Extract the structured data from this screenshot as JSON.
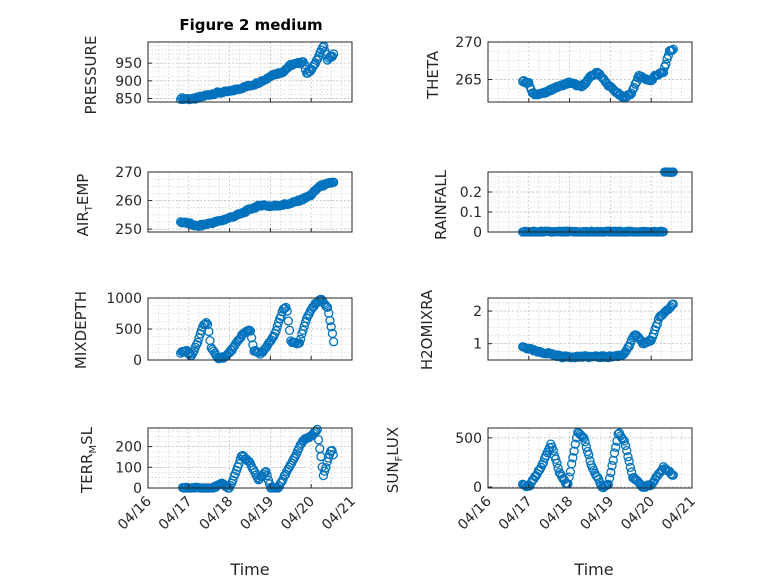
{
  "figure": {
    "title": "Figure 2 medium",
    "x_label_left": "Time",
    "x_label_right": "Time",
    "date_ticks": [
      "04/16",
      "04/17",
      "04/18",
      "04/19",
      "04/20",
      "04/21"
    ]
  },
  "marker_color": "#0072BD",
  "chart_data": [
    {
      "type": "scatter",
      "ylabel": "PRESSURE",
      "xlim": [
        "2023-04-16",
        "2023-04-21"
      ],
      "ylim": [
        840,
        1010
      ],
      "yticks": [
        "850",
        "900",
        "950"
      ],
      "grid": true,
      "x_unit": "days from 04/16",
      "x_anchor": [
        0.8,
        1.1,
        1.4,
        1.7,
        2.0,
        2.3,
        2.6,
        2.9,
        3.0,
        3.3,
        3.5,
        3.7,
        3.8,
        3.9,
        4.0,
        4.1,
        4.2,
        4.3,
        4.4,
        4.55
      ],
      "y_anchor": [
        850,
        848,
        858,
        866,
        870,
        880,
        890,
        905,
        915,
        925,
        945,
        950,
        955,
        920,
        930,
        950,
        975,
        1000,
        960,
        975
      ]
    },
    {
      "type": "scatter",
      "ylabel": "THETA",
      "xlim": [
        "2023-04-16",
        "2023-04-21"
      ],
      "ylim": [
        262,
        270
      ],
      "yticks": [
        "265",
        "270"
      ],
      "grid": true,
      "x_unit": "days from 04/16",
      "x_anchor": [
        0.85,
        1.0,
        1.1,
        1.4,
        1.6,
        1.8,
        2.0,
        2.3,
        2.5,
        2.7,
        2.9,
        3.1,
        3.3,
        3.5,
        3.7,
        3.9,
        4.0,
        4.1,
        4.3,
        4.45,
        4.55
      ],
      "y_anchor": [
        264.8,
        264.5,
        263.0,
        263.2,
        263.8,
        264.2,
        264.6,
        264.0,
        265.3,
        266.0,
        264.5,
        263.5,
        262.6,
        263.0,
        265.5,
        265.0,
        264.8,
        265.5,
        266.0,
        268.8,
        269.0
      ]
    },
    {
      "type": "scatter",
      "ylabel": "AIR_TEMP",
      "xlim": [
        "2023-04-16",
        "2023-04-21"
      ],
      "ylim": [
        249,
        270
      ],
      "yticks": [
        "250",
        "260",
        "270"
      ],
      "grid": true,
      "x_unit": "days from 04/16",
      "x_anchor": [
        0.8,
        1.0,
        1.2,
        1.5,
        1.8,
        2.0,
        2.3,
        2.5,
        2.8,
        3.0,
        3.3,
        3.5,
        3.7,
        3.8,
        4.0,
        4.2,
        4.4,
        4.55
      ],
      "y_anchor": [
        252.5,
        252.0,
        251.0,
        252.0,
        253.0,
        254.0,
        255.5,
        257.0,
        258.5,
        258.0,
        258.5,
        259.0,
        260.0,
        260.5,
        262.0,
        265.0,
        265.8,
        266.5
      ]
    },
    {
      "type": "scatter",
      "ylabel": "RAINFALL",
      "xlim": [
        "2023-04-16",
        "2023-04-21"
      ],
      "ylim": [
        0,
        0.3
      ],
      "yticks": [
        "0",
        "0.1",
        "0.2"
      ],
      "grid": true,
      "x_unit": "days from 04/16",
      "x_anchor": [
        0.85,
        4.3,
        4.3,
        4.55
      ],
      "y_anchor": [
        0,
        0,
        0.3,
        0.3
      ]
    },
    {
      "type": "scatter",
      "ylabel": "MIXDEPTH",
      "xlim": [
        "2023-04-16",
        "2023-04-21"
      ],
      "ylim": [
        0,
        1000
      ],
      "yticks": [
        "0",
        "500",
        "1000"
      ],
      "grid": true,
      "x_unit": "days from 04/16",
      "x_anchor": [
        0.8,
        0.95,
        1.05,
        1.2,
        1.35,
        1.45,
        1.55,
        1.7,
        1.9,
        2.1,
        2.3,
        2.5,
        2.6,
        2.75,
        2.9,
        3.1,
        3.3,
        3.4,
        3.5,
        3.7,
        3.9,
        4.1,
        4.25,
        4.4,
        4.5,
        4.55
      ],
      "y_anchor": [
        120,
        150,
        50,
        250,
        550,
        620,
        200,
        30,
        50,
        200,
        400,
        500,
        150,
        100,
        200,
        400,
        800,
        850,
        300,
        250,
        700,
        900,
        980,
        850,
        500,
        300
      ]
    },
    {
      "type": "scatter",
      "ylabel": "H2OMIXRA",
      "xlim": [
        "2023-04-16",
        "2023-04-21"
      ],
      "ylim": [
        0.5,
        2.4
      ],
      "yticks": [
        "1",
        "2"
      ],
      "grid": true,
      "x_unit": "days from 04/16",
      "x_anchor": [
        0.85,
        1.0,
        1.2,
        1.5,
        1.8,
        2.2,
        2.6,
        3.0,
        3.3,
        3.45,
        3.6,
        3.8,
        4.0,
        4.2,
        4.4,
        4.55
      ],
      "y_anchor": [
        0.9,
        0.85,
        0.75,
        0.7,
        0.6,
        0.6,
        0.6,
        0.6,
        0.65,
        0.9,
        1.3,
        1.0,
        1.1,
        1.8,
        2.05,
        2.25
      ]
    },
    {
      "type": "scatter",
      "ylabel": "TERR_MSL",
      "xlim": [
        "2023-04-16",
        "2023-04-21"
      ],
      "ylim": [
        0,
        290
      ],
      "yticks": [
        "0",
        "100",
        "200"
      ],
      "grid": true,
      "x_unit": "days from 04/16",
      "x_anchor": [
        0.85,
        1.2,
        1.6,
        1.8,
        2.0,
        2.2,
        2.3,
        2.5,
        2.7,
        2.9,
        3.0,
        3.2,
        3.4,
        3.6,
        3.8,
        4.0,
        4.15,
        4.3,
        4.4,
        4.5,
        4.55
      ],
      "y_anchor": [
        0,
        0,
        0,
        20,
        0,
        100,
        160,
        120,
        40,
        80,
        0,
        0,
        80,
        150,
        230,
        250,
        280,
        60,
        130,
        190,
        150
      ]
    },
    {
      "type": "scatter",
      "ylabel": "SUN_FLUX",
      "xlim": [
        "2023-04-16",
        "2023-04-21"
      ],
      "ylim": [
        -10,
        600
      ],
      "yticks": [
        "0",
        "500"
      ],
      "grid": true,
      "x_unit": "days from 04/16",
      "x_anchor": [
        0.85,
        1.0,
        1.3,
        1.55,
        1.75,
        1.95,
        2.2,
        2.35,
        2.55,
        2.8,
        2.95,
        3.2,
        3.35,
        3.55,
        3.8,
        4.0,
        4.3,
        4.45,
        4.55
      ],
      "y_anchor": [
        20,
        0,
        200,
        440,
        150,
        10,
        560,
        500,
        200,
        0,
        20,
        560,
        460,
        100,
        0,
        20,
        200,
        150,
        120
      ]
    }
  ]
}
